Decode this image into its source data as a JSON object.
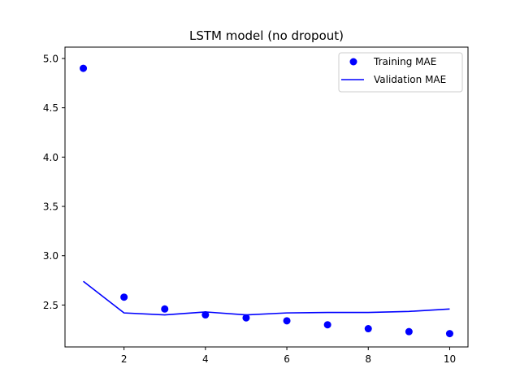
{
  "chart_data": {
    "type": "line",
    "title": "LSTM model (no dropout)",
    "xlabel": "",
    "ylabel": "",
    "xlim": [
      0.55,
      10.45
    ],
    "ylim": [
      2.075,
      5.115
    ],
    "x_ticks": [
      2,
      4,
      6,
      8,
      10
    ],
    "y_ticks": [
      2.5,
      3.0,
      3.5,
      4.0,
      4.5,
      5.0
    ],
    "x_tick_labels": [
      "2",
      "4",
      "6",
      "8",
      "10"
    ],
    "y_tick_labels": [
      "2.5",
      "3.0",
      "3.5",
      "4.0",
      "4.5",
      "5.0"
    ],
    "grid": false,
    "legend_position": "top-right",
    "x": [
      1,
      2,
      3,
      4,
      5,
      6,
      7,
      8,
      9,
      10
    ],
    "series": [
      {
        "name": "Training MAE",
        "style": "markers",
        "color": "#0000ff",
        "values": [
          4.9,
          2.58,
          2.46,
          2.4,
          2.37,
          2.34,
          2.3,
          2.26,
          2.23,
          2.21
        ]
      },
      {
        "name": "Validation MAE",
        "style": "line",
        "color": "#0000ff",
        "values": [
          2.74,
          2.42,
          2.4,
          2.43,
          2.4,
          2.42,
          2.425,
          2.425,
          2.435,
          2.46
        ]
      }
    ]
  }
}
